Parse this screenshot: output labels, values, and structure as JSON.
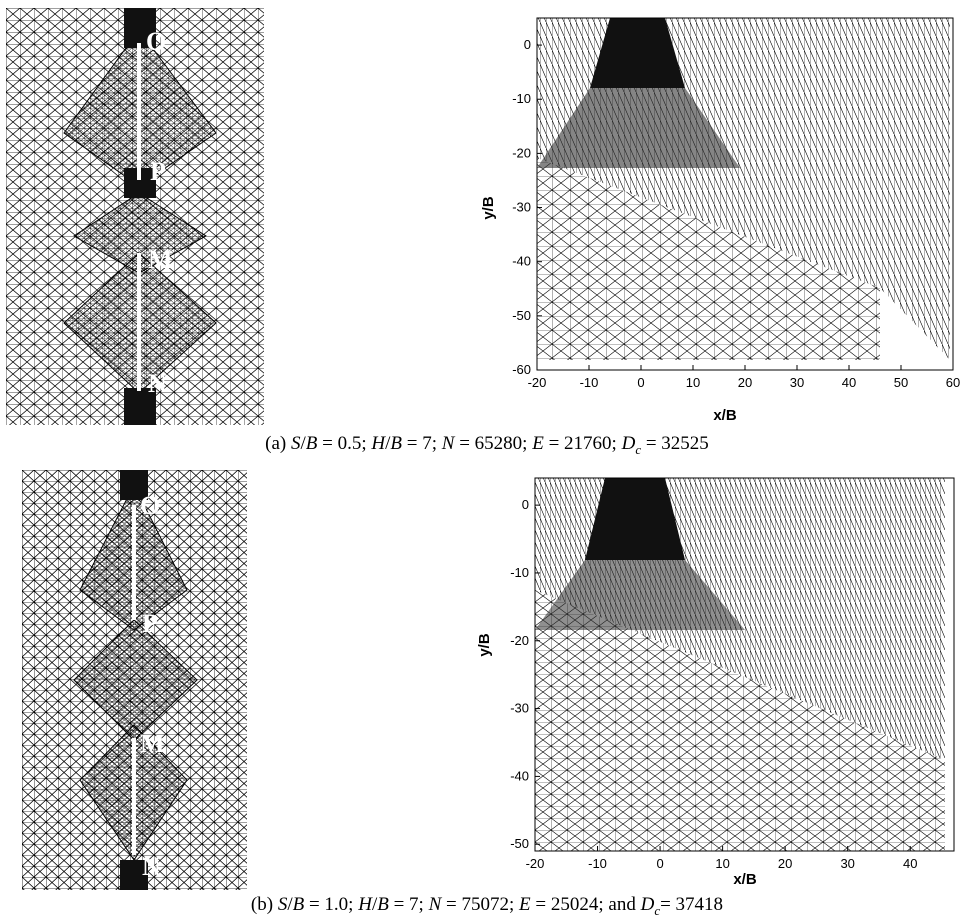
{
  "figure_a": {
    "labels": {
      "O": "O",
      "P": "P",
      "M": "M",
      "N": "N"
    },
    "caption": {
      "prefix": "(a) ",
      "s_sym": "S",
      "s_rest": "/",
      "b1": "B",
      "s_val": " = 0.5; ",
      "h_sym": "H",
      "h_rest": "/",
      "b2": "B",
      "h_val": " = 7; ",
      "n_sym": "N",
      "n_val": " = 65280; ",
      "e_sym": "E",
      "e_val": " = 21760; ",
      "d_sym": "D",
      "d_sub": "c",
      "d_val": " = 32525"
    },
    "chart_data": {
      "type": "other",
      "xlabel": "x/B",
      "ylabel": "y/B",
      "xlim": [
        -20,
        60
      ],
      "ylim": [
        -60,
        5
      ],
      "xticks": [
        -20,
        -10,
        0,
        10,
        20,
        30,
        40,
        50,
        60
      ],
      "yticks": [
        0,
        -10,
        -20,
        -30,
        -40,
        -50,
        -60
      ]
    }
  },
  "figure_b": {
    "labels": {
      "O": "O",
      "P": "P",
      "M": "M",
      "N": "N"
    },
    "caption": {
      "prefix": "(b) ",
      "s_sym": "S",
      "s_rest": "/",
      "b1": "B",
      "s_val": " = 1.0; ",
      "h_sym": "H",
      "h_rest": "/",
      "b2": "B",
      "h_val": " = 7; ",
      "n_sym": "N",
      "n_val": " = 75072; ",
      "e_sym": "E",
      "e_val": " = 25024; and ",
      "d_sym": "D",
      "d_sub": "c",
      "d_val": "= 37418"
    },
    "chart_data": {
      "type": "other",
      "xlabel": "x/B",
      "ylabel": "y/B",
      "xlim": [
        -20,
        47
      ],
      "ylim": [
        -51,
        4
      ],
      "xticks": [
        -20,
        -10,
        0,
        10,
        20,
        30,
        40
      ],
      "yticks": [
        0,
        -10,
        -20,
        -30,
        -40,
        -50
      ]
    }
  }
}
